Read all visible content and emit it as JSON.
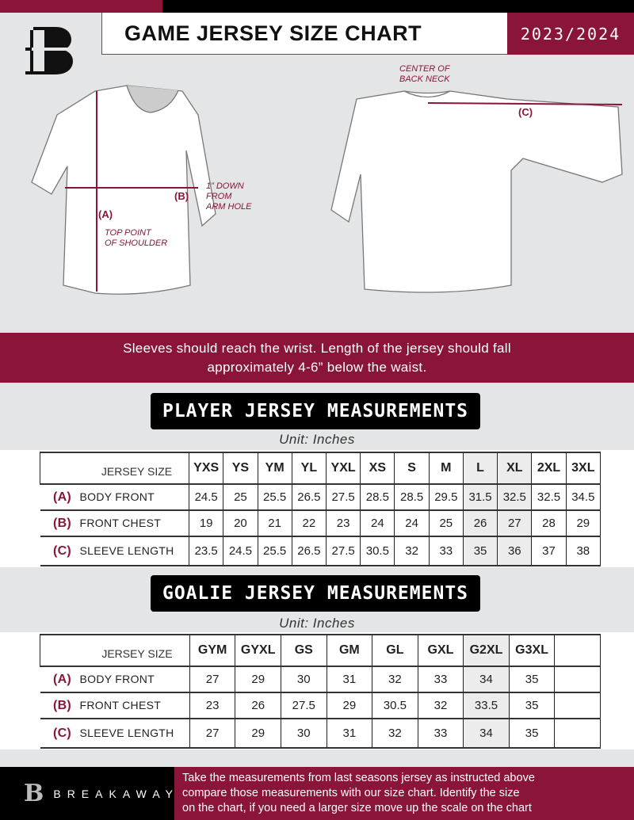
{
  "header": {
    "title": "GAME JERSEY SIZE CHART",
    "season": "2023/2024",
    "logo_letter": "B"
  },
  "colors": {
    "accent": "#8a1538",
    "dark": "#000000",
    "background": "#e4e5e6"
  },
  "diagram": {
    "front": {
      "label_a": "(A)",
      "label_a_desc": [
        "TOP POINT",
        "OF SHOULDER"
      ],
      "label_b": "(B)",
      "label_b_desc": [
        "1” DOWN",
        "FROM",
        "ARM HOLE"
      ]
    },
    "back": {
      "center_label": [
        "CENTER OF",
        "BACK NECK"
      ],
      "label_c": "(C)"
    }
  },
  "banner": {
    "lines": [
      "Sleeves should reach the wrist. Length of the jersey should fall",
      "approximately 4-6” below the waist."
    ]
  },
  "player": {
    "title": "PLAYER JERSEY MEASUREMENTS",
    "unit": "Unit: Inches",
    "size_header": "JERSEY SIZE",
    "sizes": [
      "YXS",
      "YS",
      "YM",
      "YL",
      "YXL",
      "XS",
      "S",
      "M",
      "L",
      "XL",
      "2XL",
      "3XL"
    ],
    "rows": [
      {
        "code": "(A)",
        "label": "BODY FRONT",
        "values": [
          "24.5",
          "25",
          "25.5",
          "26.5",
          "27.5",
          "28.5",
          "28.5",
          "29.5",
          "31.5",
          "32.5",
          "32.5",
          "34.5"
        ]
      },
      {
        "code": "(B)",
        "label": "FRONT CHEST",
        "values": [
          "19",
          "20",
          "21",
          "22",
          "23",
          "24",
          "24",
          "25",
          "26",
          "27",
          "28",
          "29"
        ]
      },
      {
        "code": "(C)",
        "label": "SLEEVE LENGTH",
        "values": [
          "23.5",
          "24.5",
          "25.5",
          "26.5",
          "27.5",
          "30.5",
          "32",
          "33",
          "35",
          "36",
          "37",
          "38"
        ]
      }
    ]
  },
  "goalie": {
    "title": "GOALIE JERSEY MEASUREMENTS",
    "unit": "Unit: Inches",
    "size_header": "JERSEY SIZE",
    "sizes": [
      "GYM",
      "GYXL",
      "GS",
      "GM",
      "GL",
      "GXL",
      "G2XL",
      "G3XL",
      ""
    ],
    "rows": [
      {
        "code": "(A)",
        "label": "BODY FRONT",
        "values": [
          "27",
          "29",
          "30",
          "31",
          "32",
          "33",
          "34",
          "35",
          ""
        ]
      },
      {
        "code": "(B)",
        "label": "FRONT CHEST",
        "values": [
          "23",
          "26",
          "27.5",
          "29",
          "30.5",
          "32",
          "33.5",
          "35",
          ""
        ]
      },
      {
        "code": "(C)",
        "label": "SLEEVE LENGTH",
        "values": [
          "27",
          "29",
          "30",
          "31",
          "32",
          "33",
          "34",
          "35",
          ""
        ]
      }
    ]
  },
  "footer": {
    "brand": "BREAKAWAY",
    "text": [
      "Take the measurements from last seasons jersey as instructed above",
      "compare those measurements  with our size chart. Identify the size",
      "on the chart, if you need a larger size move up the scale on the chart"
    ]
  }
}
